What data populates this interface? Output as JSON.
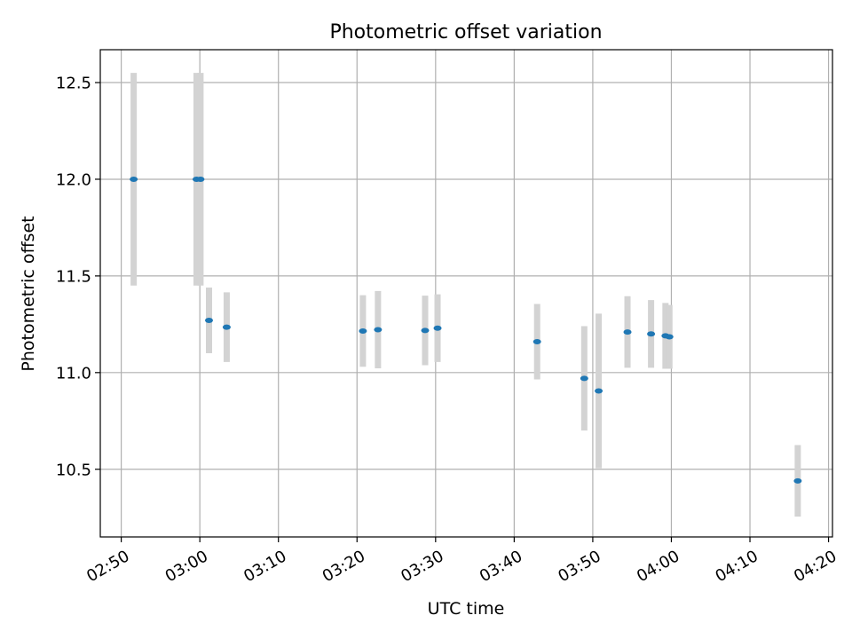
{
  "chart_data": {
    "type": "scatter",
    "title": "Photometric offset variation",
    "xlabel": "UTC time",
    "ylabel": "Photometric offset",
    "x_ticks": [
      "02:50",
      "03:00",
      "03:10",
      "03:20",
      "03:30",
      "03:40",
      "03:50",
      "04:00",
      "04:10",
      "04:20"
    ],
    "y_ticks": [
      "10.5",
      "11.0",
      "11.5",
      "12.0",
      "12.5"
    ],
    "xlim": [
      "02:47:20",
      "04:20:30"
    ],
    "ylim": [
      10.15,
      12.67
    ],
    "grid": true,
    "point_color": "#1f77b4",
    "errorbar_color": "#d3d3d3",
    "series": [
      {
        "x": [
          "02:51:35",
          "02:59:35",
          "03:00:05",
          "03:01:10",
          "03:03:25",
          "03:20:45",
          "03:22:40",
          "03:28:40",
          "03:30:15",
          "03:42:55",
          "03:48:55",
          "03:50:45",
          "03:54:25",
          "03:57:25",
          "03:59:15",
          "03:59:45",
          "04:16:05"
        ],
        "y": [
          12.0,
          12.0,
          12.0,
          11.27,
          11.235,
          11.215,
          11.222,
          11.218,
          11.23,
          11.16,
          10.97,
          10.905,
          11.21,
          11.2,
          11.19,
          11.185,
          10.44
        ],
        "yerr": [
          0.55,
          0.55,
          0.55,
          0.17,
          0.18,
          0.185,
          0.2,
          0.18,
          0.175,
          0.195,
          0.27,
          0.4,
          0.185,
          0.175,
          0.17,
          0.165,
          0.185
        ]
      }
    ]
  }
}
